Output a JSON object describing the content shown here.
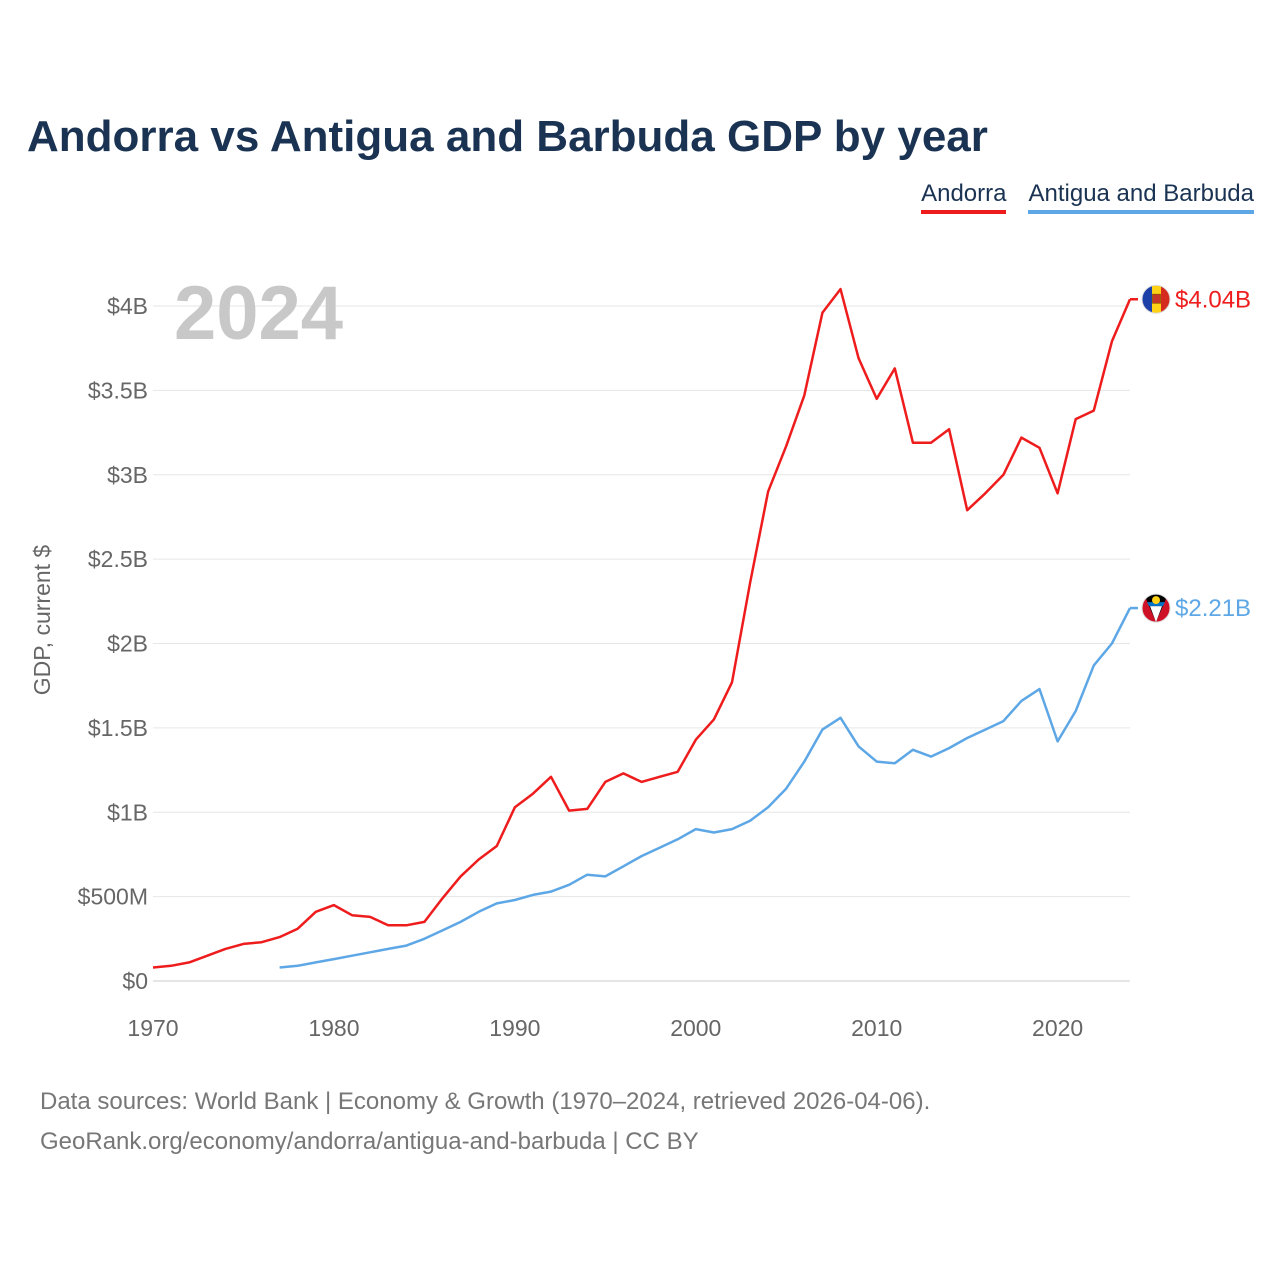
{
  "title": "Andorra vs Antigua and Barbuda GDP by year",
  "legend": [
    "Andorra",
    "Antigua and Barbuda"
  ],
  "colors": {
    "andorra": "#ee1c1c",
    "antigua": "#5ea7e6",
    "title": "#1a3353",
    "axis_text": "#666666",
    "grid": "#e6e6e6",
    "year_watermark": "#c8c8c8"
  },
  "year_watermark": "2024",
  "source_lines": [
    "Data sources: World Bank | Economy & Growth (1970–2024, retrieved 2026-04-06).",
    "GeoRank.org/economy/andorra/antigua-and-barbuda | CC BY"
  ],
  "chart_data": {
    "type": "line",
    "title": "Andorra vs Antigua and Barbuda GDP by year",
    "ylabel": "GDP, current $",
    "xlabel": "",
    "xlim": [
      1970,
      2024
    ],
    "ylim": [
      0,
      4000000000
    ],
    "x_ticks": [
      1970,
      1980,
      1990,
      2000,
      2010,
      2020
    ],
    "y_ticks": [
      {
        "value": 0,
        "label": "$0"
      },
      {
        "value": 500000000,
        "label": "$500M"
      },
      {
        "value": 1000000000,
        "label": "$1B"
      },
      {
        "value": 1500000000,
        "label": "$1.5B"
      },
      {
        "value": 2000000000,
        "label": "$2B"
      },
      {
        "value": 2500000000,
        "label": "$2.5B"
      },
      {
        "value": 3000000000,
        "label": "$3B"
      },
      {
        "value": 3500000000,
        "label": "$3.5B"
      },
      {
        "value": 4000000000,
        "label": "$4B"
      }
    ],
    "grid": true,
    "series": [
      {
        "name": "Andorra",
        "color": "#ee1c1c",
        "end_label": "$4.04B",
        "flag": "andorra-flag",
        "x": [
          1970,
          1971,
          1972,
          1973,
          1974,
          1975,
          1976,
          1977,
          1978,
          1979,
          1980,
          1981,
          1982,
          1983,
          1984,
          1985,
          1986,
          1987,
          1988,
          1989,
          1990,
          1991,
          1992,
          1993,
          1994,
          1995,
          1996,
          1997,
          1998,
          1999,
          2000,
          2001,
          2002,
          2003,
          2004,
          2005,
          2006,
          2007,
          2008,
          2009,
          2010,
          2011,
          2012,
          2013,
          2014,
          2015,
          2016,
          2017,
          2018,
          2019,
          2020,
          2021,
          2022,
          2023,
          2024
        ],
        "values": [
          0.08,
          0.09,
          0.11,
          0.15,
          0.19,
          0.22,
          0.23,
          0.26,
          0.31,
          0.41,
          0.45,
          0.39,
          0.38,
          0.33,
          0.33,
          0.35,
          0.49,
          0.62,
          0.72,
          0.8,
          1.03,
          1.11,
          1.21,
          1.01,
          1.02,
          1.18,
          1.23,
          1.18,
          1.21,
          1.24,
          1.43,
          1.55,
          1.77,
          2.36,
          2.9,
          3.17,
          3.47,
          3.96,
          4.1,
          3.69,
          3.45,
          3.63,
          3.19,
          3.19,
          3.27,
          2.79,
          2.89,
          3.0,
          3.22,
          3.16,
          2.89,
          3.33,
          3.38,
          3.79,
          4.04
        ]
      },
      {
        "name": "Antigua and Barbuda",
        "color": "#5ea7e6",
        "end_label": "$2.21B",
        "flag": "antigua-and-barbuda-flag",
        "x": [
          1977,
          1978,
          1979,
          1980,
          1981,
          1982,
          1983,
          1984,
          1985,
          1986,
          1987,
          1988,
          1989,
          1990,
          1991,
          1992,
          1993,
          1994,
          1995,
          1996,
          1997,
          1998,
          1999,
          2000,
          2001,
          2002,
          2003,
          2004,
          2005,
          2006,
          2007,
          2008,
          2009,
          2010,
          2011,
          2012,
          2013,
          2014,
          2015,
          2016,
          2017,
          2018,
          2019,
          2020,
          2021,
          2022,
          2023,
          2024
        ],
        "values": [
          0.08,
          0.09,
          0.11,
          0.13,
          0.15,
          0.17,
          0.19,
          0.21,
          0.25,
          0.3,
          0.35,
          0.41,
          0.46,
          0.48,
          0.51,
          0.53,
          0.57,
          0.63,
          0.62,
          0.68,
          0.74,
          0.79,
          0.84,
          0.9,
          0.88,
          0.9,
          0.95,
          1.03,
          1.14,
          1.3,
          1.49,
          1.56,
          1.39,
          1.3,
          1.29,
          1.37,
          1.33,
          1.38,
          1.44,
          1.49,
          1.54,
          1.66,
          1.73,
          1.42,
          1.6,
          1.87,
          2.0,
          2.21
        ]
      }
    ]
  }
}
